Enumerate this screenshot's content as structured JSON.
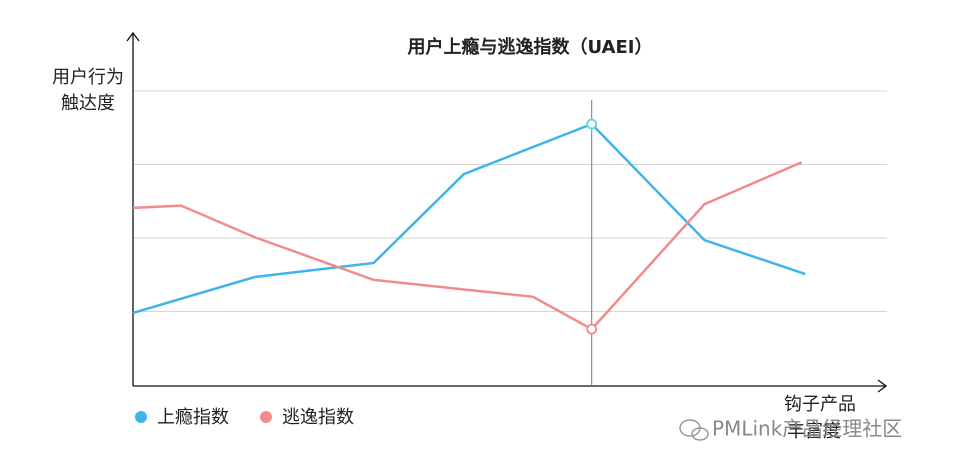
{
  "chart_data": {
    "type": "line",
    "title": "用户上瘾与逃逸指数（UAEI）",
    "ylabel": [
      "用户行为",
      "触达度"
    ],
    "xlabel": [
      "钩子产品",
      "丰富度"
    ],
    "watermark": "PMLink产品经理社区",
    "xlim": [
      0,
      10
    ],
    "ylim": [
      0,
      4
    ],
    "yticks": [
      1,
      2,
      3,
      4
    ],
    "grid": true,
    "crosshair_x": 6.1,
    "series": [
      {
        "name": "上瘾指数",
        "color": "#3db5ea",
        "x": [
          0,
          1.62,
          3.2,
          4.4,
          6.1,
          7.6,
          8.94
        ],
        "values": [
          0.98,
          1.47,
          1.66,
          2.87,
          3.55,
          1.97,
          1.51
        ]
      },
      {
        "name": "逃逸指数",
        "color": "#f28b8b",
        "x": [
          0,
          0.64,
          1.62,
          3.2,
          5.32,
          6.1,
          7.6,
          8.89
        ],
        "values": [
          2.41,
          2.44,
          2.01,
          1.43,
          1.2,
          0.76,
          2.46,
          3.03
        ]
      }
    ]
  }
}
